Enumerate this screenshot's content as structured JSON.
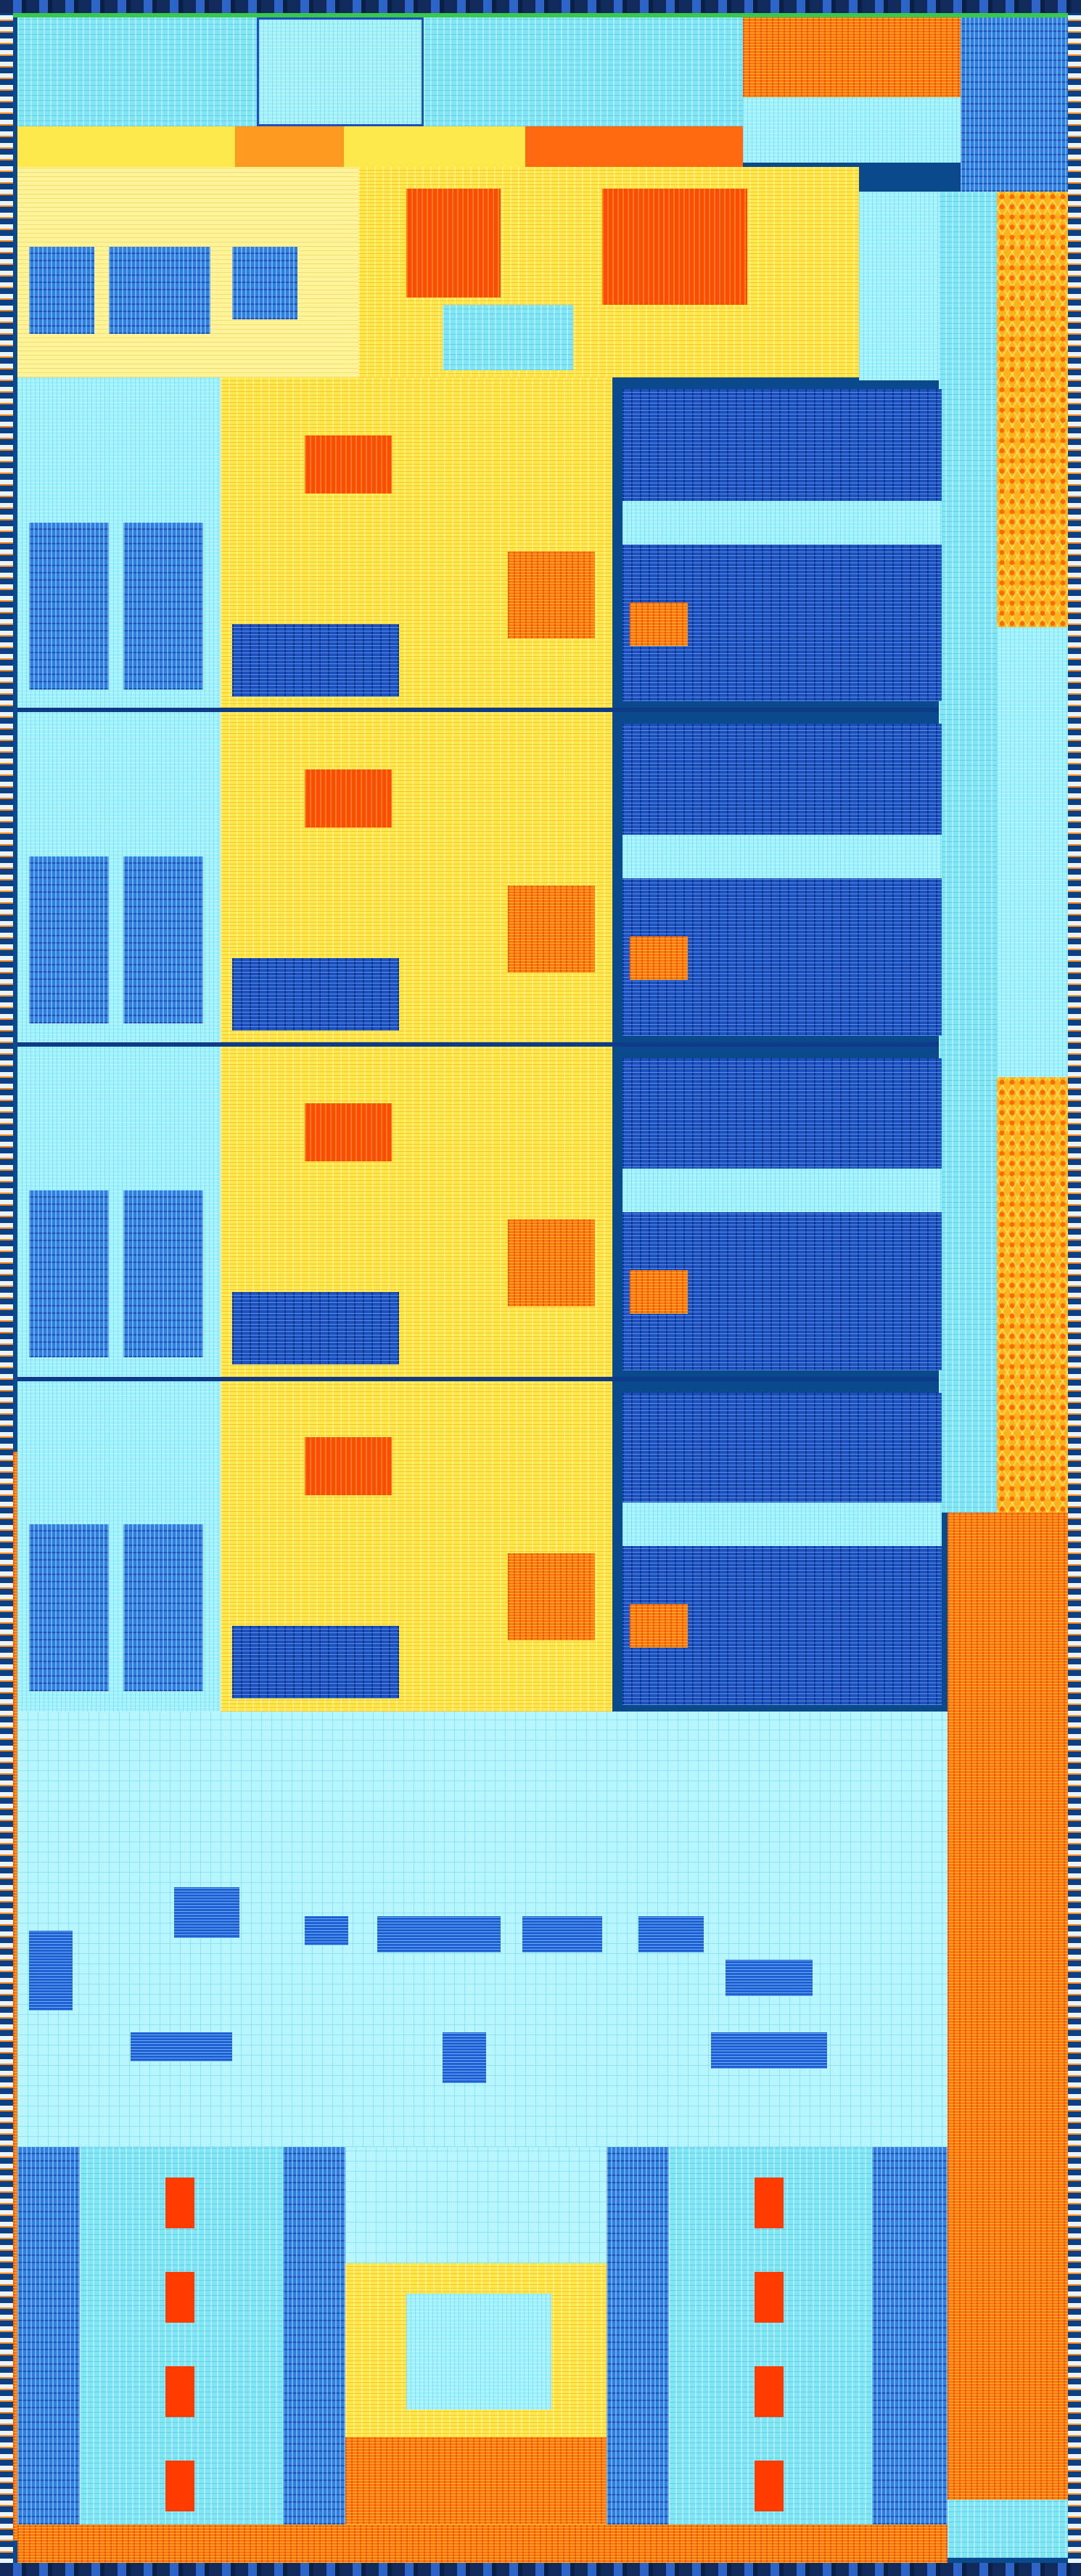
{
  "image": {
    "subject": "die-shot",
    "colors": {
      "cyan": "#7ee6f5",
      "blue": "#2a7fe0",
      "dark_blue": "#1d4fbf",
      "yellow": "#ffe84a",
      "orange": "#ff7a10",
      "red": "#ff4a08",
      "green": "#39c84a",
      "pad_frame": "#0a4a8c"
    },
    "regions": {
      "core_count": 4,
      "cache_slice_count": 4,
      "lower_array_count": 4
    }
  }
}
